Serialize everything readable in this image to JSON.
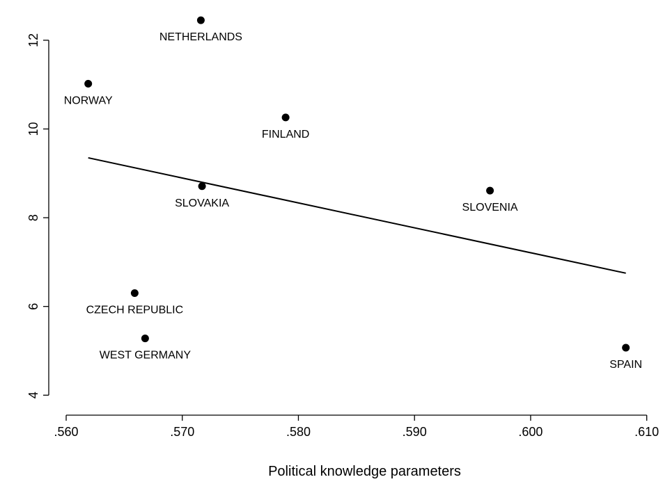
{
  "chart_data": {
    "type": "scatter",
    "title": "",
    "xlabel": "Political knowledge parameters",
    "ylabel": "",
    "xlim": [
      0.5585,
      0.6105
    ],
    "ylim": [
      3.55,
      12.75
    ],
    "x_ticks": [
      0.56,
      0.57,
      0.58,
      0.59,
      0.6,
      0.61
    ],
    "x_tick_labels": [
      ".560",
      ".570",
      ".580",
      ".590",
      ".600",
      ".610"
    ],
    "y_ticks": [
      4,
      6,
      8,
      10,
      12
    ],
    "y_tick_labels": [
      "4",
      "6",
      "8",
      "10",
      "12"
    ],
    "grid": false,
    "points": [
      {
        "label": "NETHERLANDS",
        "x": 0.5716,
        "y": 12.45
      },
      {
        "label": "NORWAY",
        "x": 0.5619,
        "y": 11.02
      },
      {
        "label": "FINLAND",
        "x": 0.5789,
        "y": 10.26
      },
      {
        "label": "SLOVAKIA",
        "x": 0.5717,
        "y": 8.71
      },
      {
        "label": "SLOVENIA",
        "x": 0.5965,
        "y": 8.61
      },
      {
        "label": "CZECH REPUBLIC",
        "x": 0.5659,
        "y": 6.3
      },
      {
        "label": "WEST GERMANY",
        "x": 0.5668,
        "y": 5.28
      },
      {
        "label": "SPAIN",
        "x": 0.6082,
        "y": 5.07
      }
    ],
    "fit_line": {
      "x": [
        0.5619,
        0.6082
      ],
      "y": [
        9.35,
        6.75
      ]
    }
  }
}
